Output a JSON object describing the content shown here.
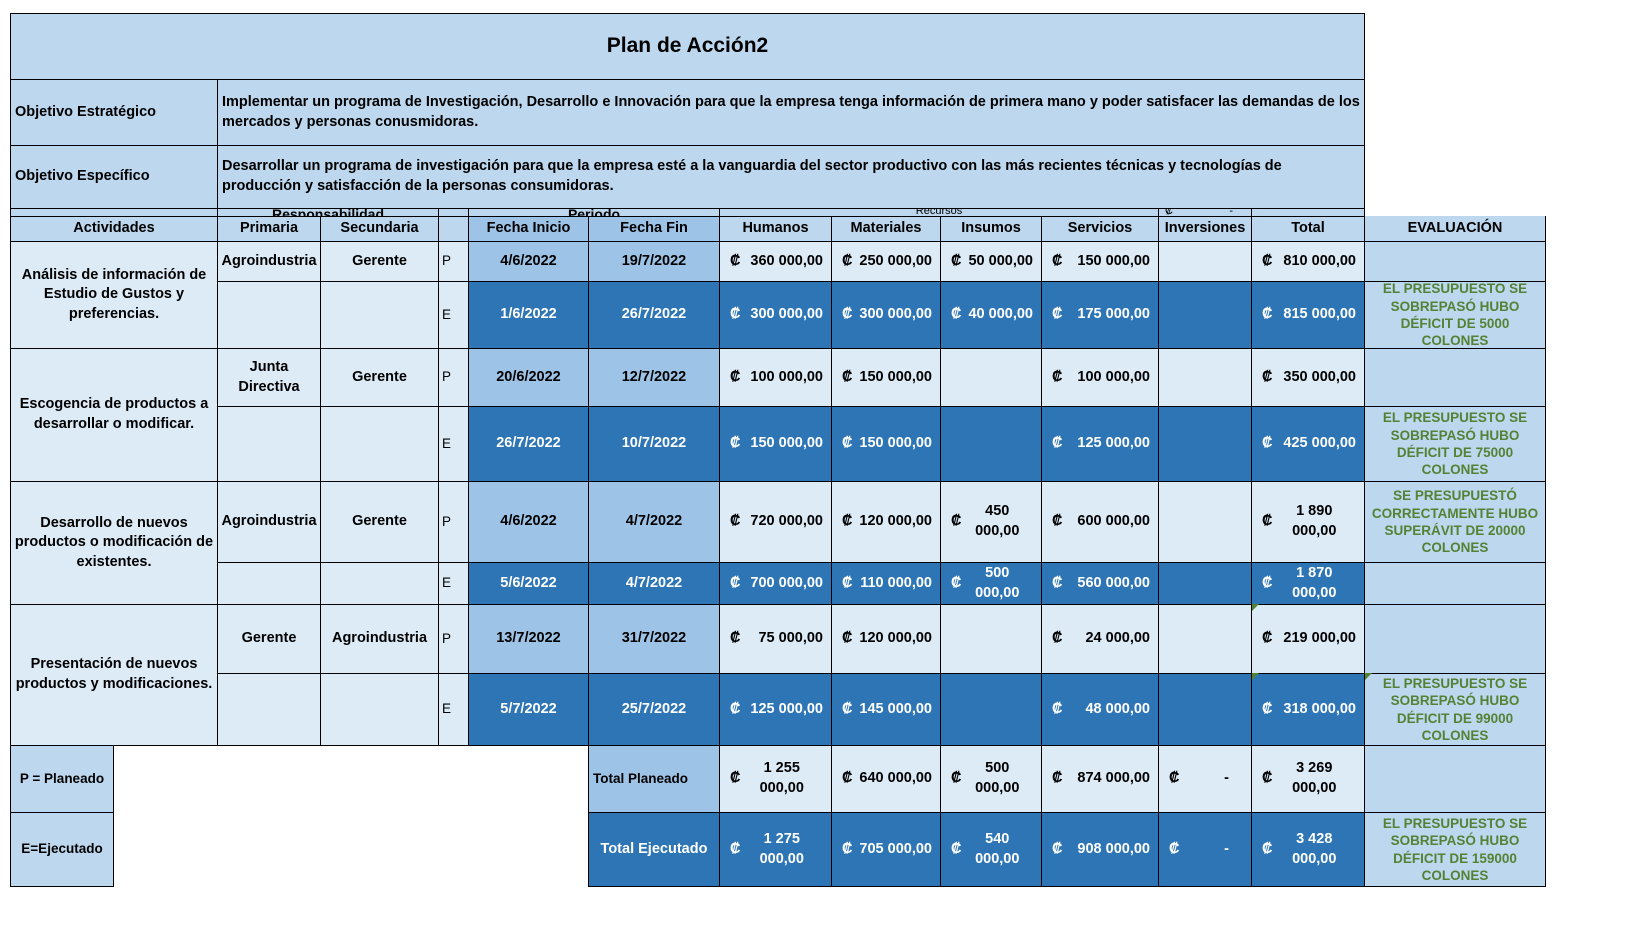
{
  "title": "Plan de Acción2",
  "objectives": {
    "strategic_label": "Objetivo Estratégico",
    "strategic_text": "Implementar un programa de Investigación, Desarrollo e Innovación para que la empresa tenga información de primera mano y poder satisfacer las demandas de los mercados y personas conusmidoras.",
    "specific_label": "Objetivo Específico",
    "specific_text": "Desarrollar un programa de investigación para que la empresa esté a la vanguardia del sector productivo con las más recientes técnicas y tecnologías de producción y satisfacción de la personas consumidoras."
  },
  "headers": {
    "responsabilidad": "Responsabilidad",
    "periodo": "Periodo",
    "recursos": "Recursos",
    "currency_fragment": "₡",
    "dash_fragment": "-",
    "actividades": "Actividades",
    "primaria": "Primaria",
    "secundaria": "Secundaria",
    "fecha_inicio": "Fecha Inicio",
    "fecha_fin": "Fecha Fin",
    "humanos": "Humanos",
    "materiales": "Materiales",
    "insumos": "Insumos",
    "servicios": "Servicios",
    "inversiones": "Inversiones",
    "total": "Total",
    "evaluacion": "EVALUACIÓN"
  },
  "currency": "₡",
  "activities": [
    {
      "name": "Análisis de información de Estudio de Gustos y preferencias.",
      "primaria": "Agroindustria",
      "secundaria": "Gerente",
      "planned": {
        "pe": "P",
        "inicio": "4/6/2022",
        "fin": "19/7/2022",
        "humanos": "360 000,00",
        "materiales": "250 000,00",
        "insumos": "50 000,00",
        "servicios": "150 000,00",
        "inversiones": "",
        "total": "810 000,00",
        "evaluacion": ""
      },
      "executed": {
        "pe": "E",
        "inicio": "1/6/2022",
        "fin": "26/7/2022",
        "humanos": "300 000,00",
        "materiales": "300 000,00",
        "insumos": "40 000,00",
        "servicios": "175 000,00",
        "inversiones": "",
        "total": "815 000,00",
        "evaluacion": "EL PRESUPUESTO SE SOBREPASÓ HUBO DÉFICIT DE 5000 COLONES"
      }
    },
    {
      "name": "Escogencia de productos a desarrollar o modificar.",
      "primaria": "Junta Directiva",
      "secundaria": "Gerente",
      "planned": {
        "pe": "P",
        "inicio": "20/6/2022",
        "fin": "12/7/2022",
        "humanos": "100 000,00",
        "materiales": "150 000,00",
        "insumos": "",
        "servicios": "100 000,00",
        "inversiones": "",
        "total": "350 000,00",
        "evaluacion": ""
      },
      "executed": {
        "pe": "E",
        "inicio": "26/7/2022",
        "fin": "10/7/2022",
        "humanos": "150 000,00",
        "materiales": "150 000,00",
        "insumos": "",
        "servicios": "125 000,00",
        "inversiones": "",
        "total": "425 000,00",
        "evaluacion": "EL PRESUPUESTO SE SOBREPASÓ HUBO DÉFICIT DE 75000 COLONES"
      }
    },
    {
      "name": "Desarrollo de nuevos productos o modificación de existentes.",
      "primaria": "Agroindustria",
      "secundaria": "Gerente",
      "planned": {
        "pe": "P",
        "inicio": "4/6/2022",
        "fin": "4/7/2022",
        "humanos": "720 000,00",
        "materiales": "120 000,00",
        "insumos": "450 000,00",
        "servicios": "600 000,00",
        "inversiones": "",
        "total": "1 890 000,00",
        "evaluacion": "SE PRESUPUESTÓ CORRECTAMENTE HUBO SUPERÁVIT DE  20000 COLONES"
      },
      "executed": {
        "pe": "E",
        "inicio": "5/6/2022",
        "fin": "4/7/2022",
        "humanos": "700 000,00",
        "materiales": "110 000,00",
        "insumos": "500 000,00",
        "servicios": "560 000,00",
        "inversiones": "",
        "total": "1 870 000,00",
        "evaluacion": ""
      }
    },
    {
      "name": "Presentación de nuevos productos y modificaciones.",
      "primaria": "Gerente",
      "secundaria": "Agroindustria",
      "planned": {
        "pe": "P",
        "inicio": "13/7/2022",
        "fin": "31/7/2022",
        "humanos": "75 000,00",
        "materiales": "120 000,00",
        "insumos": "",
        "servicios": "24 000,00",
        "inversiones": "",
        "total": "219 000,00",
        "evaluacion": ""
      },
      "executed": {
        "pe": "E",
        "inicio": "5/7/2022",
        "fin": "25/7/2022",
        "humanos": "125 000,00",
        "materiales": "145 000,00",
        "insumos": "",
        "servicios": "48 000,00",
        "inversiones": "",
        "total": "318 000,00",
        "evaluacion": "EL PRESUPUESTO SE SOBREPASÓ HUBO DÉFICIT DE 99000 COLONES"
      }
    }
  ],
  "legend": {
    "planned": "P = Planeado",
    "executed": "E=Ejecutado"
  },
  "totals": {
    "planned": {
      "label": "Total Planeado",
      "humanos": "1 255 000,00",
      "materiales": "640 000,00",
      "insumos": "500 000,00",
      "servicios": "874 000,00",
      "inversiones": "-",
      "total": "3 269 000,00",
      "evaluacion": ""
    },
    "executed": {
      "label": "Total Ejecutado",
      "humanos": "1 275 000,00",
      "materiales": "705 000,00",
      "insumos": "540 000,00",
      "servicios": "908 000,00",
      "inversiones": "-",
      "total": "3 428 000,00",
      "evaluacion": "EL PRESUPUESTO SE SOBREPASÓ HUBO DÉFICIT DE 159000 COLONES"
    }
  },
  "colors": {
    "light_blue": "#bdd7ee",
    "pale_blue": "#ddebf7",
    "mid_blue": "#9dc3e6",
    "dark_blue": "#2e75b6",
    "eval_green": "#548235"
  }
}
